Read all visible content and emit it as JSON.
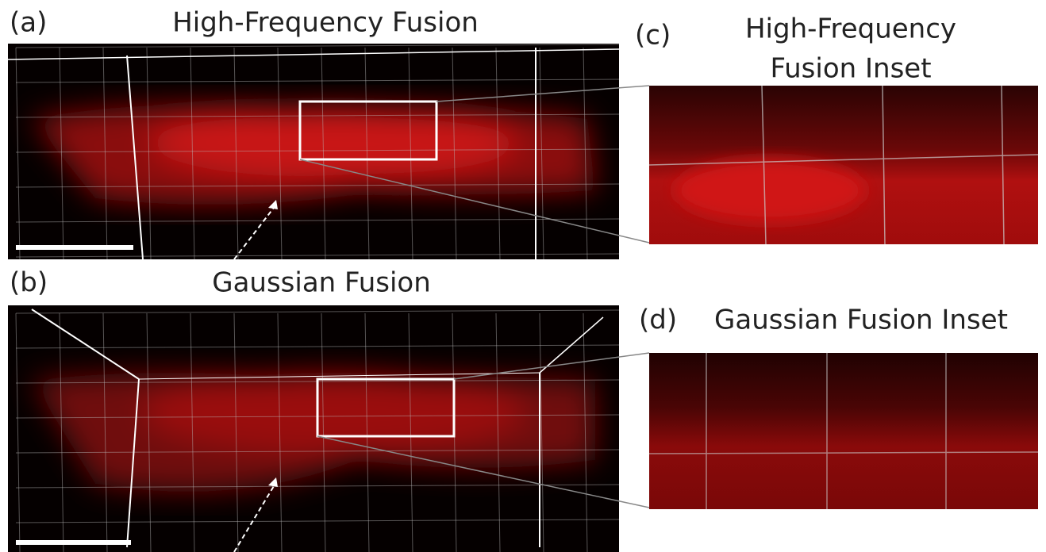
{
  "panels": [
    {
      "label": "(a)",
      "title": [
        "High-Frequency Fusion"
      ]
    },
    {
      "label": "(b)",
      "title": [
        "Gaussian Fusion"
      ]
    },
    {
      "label": "(c)",
      "title": [
        "High-Frequency",
        "Fusion Inset"
      ]
    },
    {
      "label": "(d)",
      "title": [
        "Gaussian Fusion Inset"
      ]
    }
  ]
}
